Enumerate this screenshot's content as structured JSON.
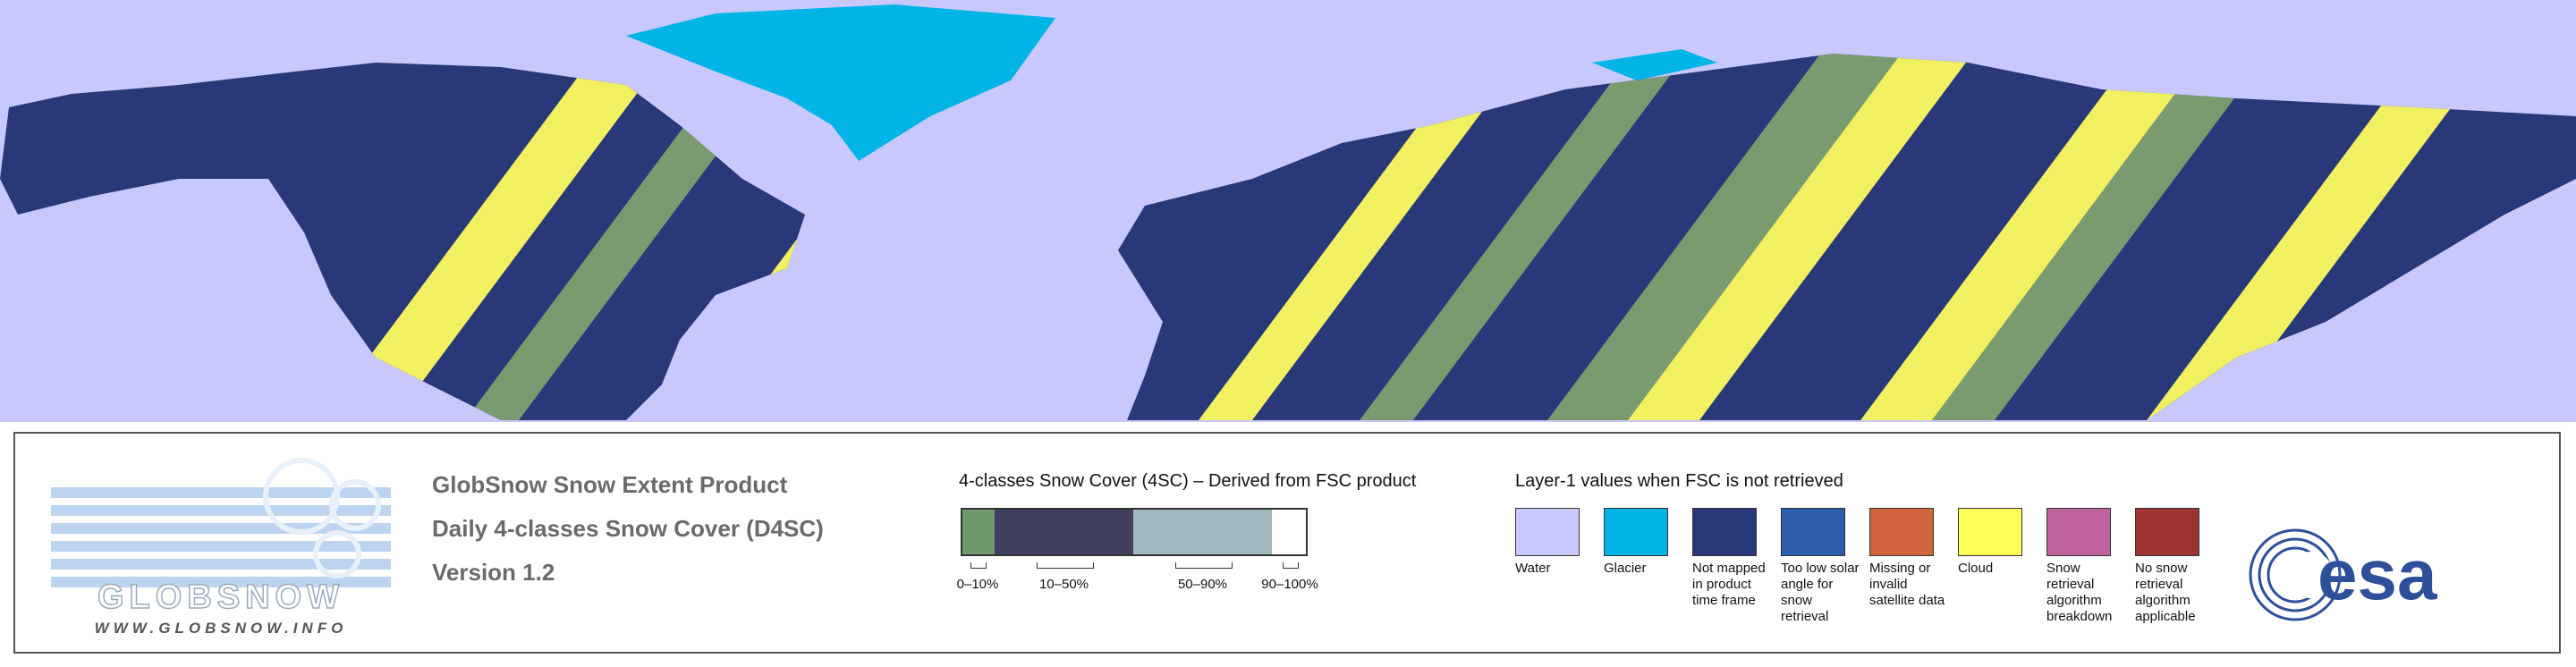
{
  "product": {
    "title": "GlobSnow Snow Extent Product",
    "subtitle": "Daily 4-classes Snow Cover (D4SC)",
    "version": "Version 1.2"
  },
  "logo": {
    "name": "GLOBSNOW",
    "url": "WWW.GLOBSNOW.INFO"
  },
  "fsc_legend": {
    "title": "4-classes Snow Cover (4SC) – Derived from FSC product",
    "classes": [
      {
        "label": "0–10%",
        "color": "#6f9a6c"
      },
      {
        "label": "10–50%",
        "color": "#40405e"
      },
      {
        "label": "50–90%",
        "color": "#a1b9bf"
      },
      {
        "label": "90–100%",
        "color": "#ffffff"
      }
    ]
  },
  "layer1_legend": {
    "title": "Layer-1 values when FSC is not retrieved",
    "items": [
      {
        "label": "Water",
        "color": "#c8c8ff"
      },
      {
        "label": "Glacier",
        "color": "#00b4e6"
      },
      {
        "label": "Not mapped in product time frame",
        "color": "#283878"
      },
      {
        "label": "Too low solar angle for snow retrieval",
        "color": "#2c5caa"
      },
      {
        "label": "Missing or invalid satellite data",
        "color": "#d0643c"
      },
      {
        "label": "Cloud",
        "color": "#ffff5a"
      },
      {
        "label": "Snow retrieval algorithm breakdown",
        "color": "#c064a0"
      },
      {
        "label": "No snow retrieval algorithm applicable",
        "color": "#a03232"
      }
    ]
  },
  "agency": "esa"
}
